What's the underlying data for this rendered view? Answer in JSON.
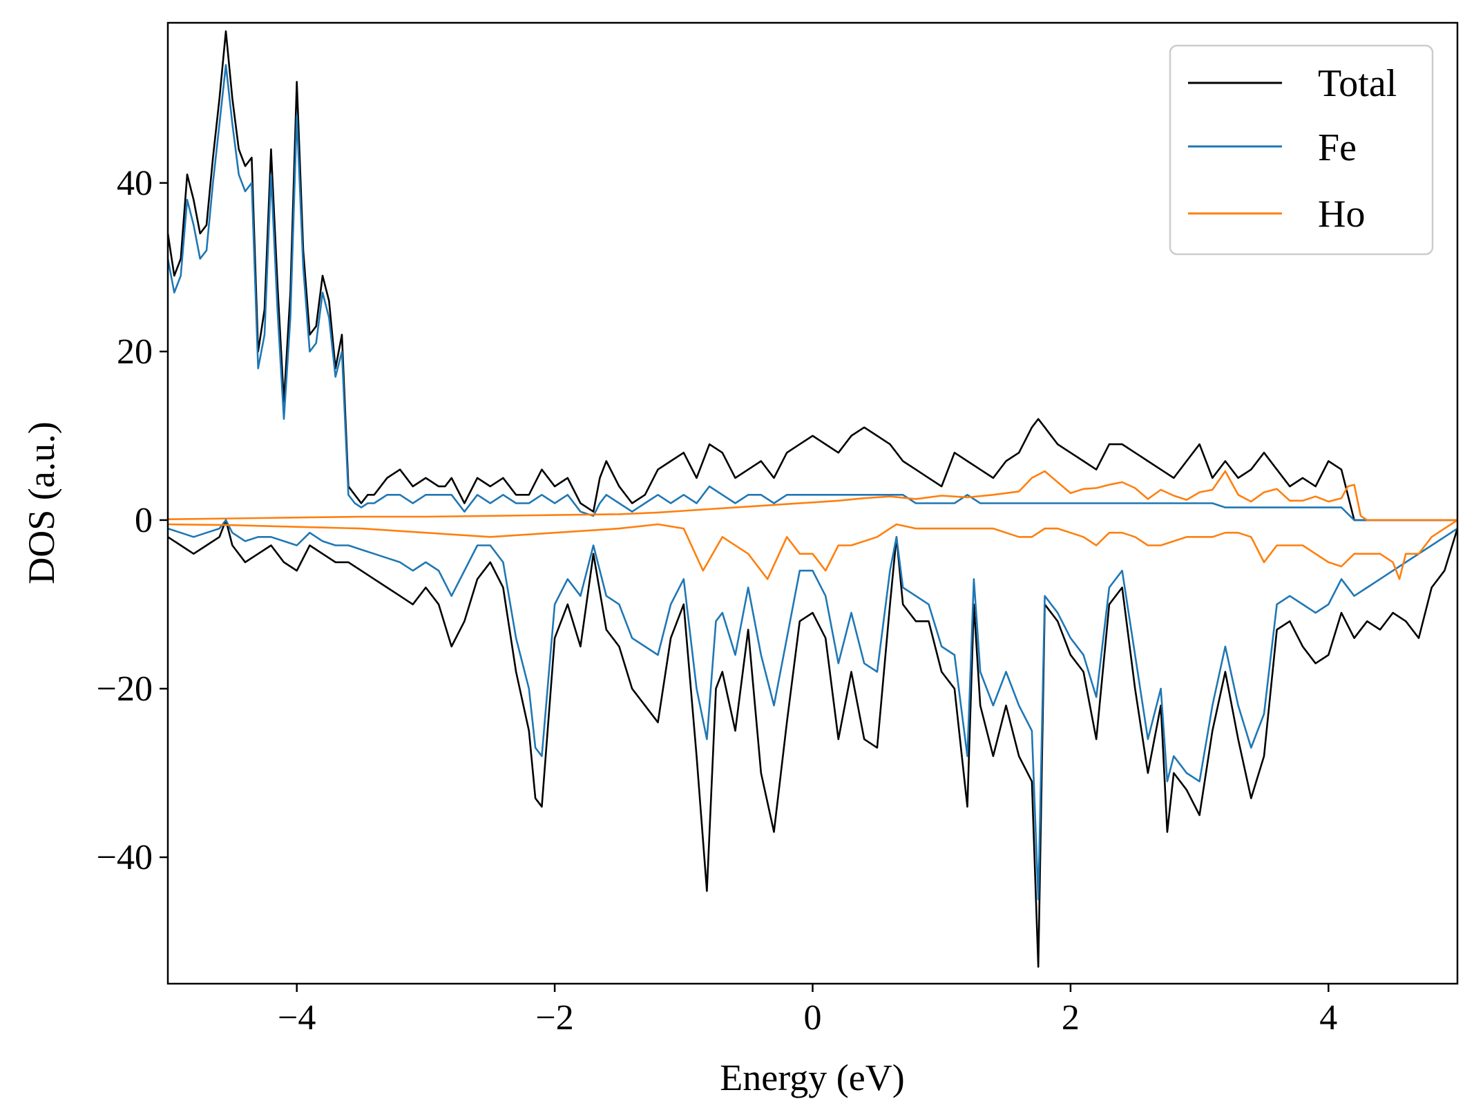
{
  "chart_data": {
    "type": "line",
    "title": "",
    "xlabel": "Energy (eV)",
    "ylabel": "DOS (a.u.)",
    "xlim": [
      -5,
      5
    ],
    "ylim": [
      -55,
      59
    ],
    "xticks": [
      -4,
      -2,
      0,
      2,
      4
    ],
    "yticks": [
      -40,
      -20,
      0,
      20,
      40
    ],
    "xtick_labels": [
      "−4",
      "−2",
      "0",
      "2",
      "4"
    ],
    "ytick_labels": [
      "−40",
      "−20",
      "0",
      "20",
      "40"
    ],
    "grid": false,
    "legend": {
      "position": "top-right",
      "entries": [
        "Total",
        "Fe",
        "Ho"
      ]
    },
    "series": [
      {
        "name": "Total",
        "spin": "up",
        "color": "#000000",
        "x": [
          -5.0,
          -4.95,
          -4.9,
          -4.85,
          -4.8,
          -4.75,
          -4.7,
          -4.65,
          -4.6,
          -4.55,
          -4.5,
          -4.45,
          -4.4,
          -4.35,
          -4.3,
          -4.25,
          -4.2,
          -4.15,
          -4.1,
          -4.05,
          -4.0,
          -3.95,
          -3.9,
          -3.85,
          -3.8,
          -3.75,
          -3.7,
          -3.65,
          -3.6,
          -3.55,
          -3.5,
          -3.45,
          -3.4,
          -3.35,
          -3.3,
          -3.2,
          -3.1,
          -3.0,
          -2.9,
          -2.85,
          -2.8,
          -2.7,
          -2.6,
          -2.5,
          -2.4,
          -2.3,
          -2.2,
          -2.1,
          -2.0,
          -1.9,
          -1.8,
          -1.7,
          -1.65,
          -1.6,
          -1.5,
          -1.4,
          -1.3,
          -1.2,
          -1.1,
          -1.0,
          -0.9,
          -0.8,
          -0.7,
          -0.6,
          -0.5,
          -0.4,
          -0.3,
          -0.2,
          -0.1,
          0.0,
          0.1,
          0.2,
          0.3,
          0.4,
          0.5,
          0.6,
          0.65,
          0.7,
          0.8,
          0.9,
          1.0,
          1.1,
          1.2,
          1.3,
          1.4,
          1.5,
          1.6,
          1.7,
          1.75,
          1.8,
          1.85,
          1.9,
          2.0,
          2.1,
          2.2,
          2.3,
          2.4,
          2.5,
          2.6,
          2.7,
          2.8,
          2.9,
          3.0,
          3.1,
          3.2,
          3.3,
          3.4,
          3.5,
          3.6,
          3.7,
          3.8,
          3.9,
          4.0,
          4.1,
          4.2,
          4.25,
          4.3,
          4.4,
          4.5,
          4.6,
          4.7,
          4.8,
          4.9,
          5.0
        ],
        "y": [
          34,
          29,
          31,
          41,
          38,
          34,
          35,
          43,
          50,
          58,
          50,
          44,
          42,
          43,
          20,
          25,
          44,
          28,
          14,
          27,
          52,
          32,
          22,
          23,
          29,
          26,
          18,
          22,
          4,
          3,
          2,
          3,
          3,
          4,
          5,
          6,
          4,
          5,
          4,
          4,
          5,
          2,
          5,
          4,
          5,
          3,
          3,
          6,
          4,
          5,
          2,
          1,
          5,
          7,
          4,
          2,
          3,
          6,
          7,
          8,
          5,
          9,
          8,
          5,
          6,
          7,
          5,
          8,
          9,
          10,
          9,
          8,
          10,
          11,
          10,
          9,
          8,
          7,
          6,
          5,
          4,
          8,
          7,
          6,
          5,
          7,
          8,
          11,
          12,
          11,
          10,
          9,
          8,
          7,
          6,
          9,
          9,
          8,
          7,
          6,
          5,
          7,
          9,
          5,
          7,
          5,
          6,
          8,
          6,
          4,
          5,
          4,
          7,
          6,
          0,
          0,
          0,
          0,
          0,
          0,
          0,
          0,
          0,
          0
        ]
      },
      {
        "name": "Fe",
        "spin": "up",
        "color": "#1f77b4",
        "x": [
          -5.0,
          -4.95,
          -4.9,
          -4.85,
          -4.8,
          -4.75,
          -4.7,
          -4.65,
          -4.6,
          -4.55,
          -4.5,
          -4.45,
          -4.4,
          -4.35,
          -4.3,
          -4.25,
          -4.2,
          -4.15,
          -4.1,
          -4.05,
          -4.0,
          -3.95,
          -3.9,
          -3.85,
          -3.8,
          -3.75,
          -3.7,
          -3.65,
          -3.6,
          -3.55,
          -3.5,
          -3.45,
          -3.4,
          -3.35,
          -3.3,
          -3.2,
          -3.1,
          -3.0,
          -2.9,
          -2.85,
          -2.8,
          -2.7,
          -2.6,
          -2.5,
          -2.4,
          -2.3,
          -2.2,
          -2.1,
          -2.0,
          -1.9,
          -1.8,
          -1.7,
          -1.65,
          -1.6,
          -1.5,
          -1.4,
          -1.3,
          -1.2,
          -1.1,
          -1.0,
          -0.9,
          -0.8,
          -0.7,
          -0.6,
          -0.5,
          -0.4,
          -0.3,
          -0.2,
          -0.1,
          0.0,
          0.1,
          0.2,
          0.3,
          0.4,
          0.5,
          0.6,
          0.65,
          0.7,
          0.8,
          0.9,
          1.0,
          1.1,
          1.2,
          1.3,
          1.4,
          1.5,
          1.6,
          1.7,
          1.75,
          1.8,
          1.85,
          1.9,
          2.0,
          2.1,
          2.2,
          2.3,
          2.4,
          2.5,
          2.6,
          2.7,
          2.8,
          2.9,
          3.0,
          3.1,
          3.2,
          3.3,
          3.4,
          3.5,
          3.6,
          3.7,
          3.8,
          3.9,
          4.0,
          4.1,
          4.2,
          4.25,
          4.3,
          4.4,
          4.5,
          4.6,
          4.7,
          4.8,
          4.9,
          5.0
        ],
        "y": [
          31,
          27,
          29,
          38,
          35,
          31,
          32,
          40,
          47,
          54,
          47,
          41,
          39,
          40,
          18,
          22,
          41,
          25,
          12,
          24,
          48,
          30,
          20,
          21,
          27,
          24,
          17,
          20,
          3,
          2,
          1.5,
          2,
          2,
          2.5,
          3,
          3,
          2,
          3,
          3,
          3,
          3,
          1,
          3,
          2,
          3,
          2,
          2,
          3,
          2,
          3,
          1,
          0.5,
          2,
          3,
          2,
          1,
          2,
          3,
          2,
          3,
          2,
          4,
          3,
          2,
          3,
          3,
          2,
          3,
          3,
          3,
          3,
          3,
          3,
          3,
          3,
          3,
          3,
          3,
          2,
          2,
          2,
          2,
          3,
          2,
          2,
          2,
          2,
          2,
          2,
          2,
          2,
          2,
          2,
          2,
          2,
          2,
          2,
          2,
          2,
          2,
          2,
          2,
          2,
          2,
          1.5,
          1.5,
          1.5,
          1.5,
          1.5,
          1.5,
          1.5,
          1.5,
          1.5,
          1.5,
          0,
          0,
          0,
          0,
          0,
          0,
          0,
          0,
          0,
          0
        ]
      },
      {
        "name": "Ho",
        "spin": "up",
        "color": "#ff7f0e",
        "x": [
          -5.0,
          -4.5,
          -4.0,
          -3.5,
          -3.0,
          -2.5,
          -2.0,
          -1.5,
          -1.2,
          -1.0,
          -0.8,
          -0.6,
          -0.4,
          -0.2,
          0.0,
          0.2,
          0.4,
          0.6,
          0.8,
          1.0,
          1.2,
          1.4,
          1.6,
          1.7,
          1.8,
          1.9,
          2.0,
          2.1,
          2.2,
          2.3,
          2.4,
          2.5,
          2.6,
          2.7,
          2.8,
          2.9,
          3.0,
          3.1,
          3.2,
          3.3,
          3.4,
          3.5,
          3.6,
          3.7,
          3.8,
          3.9,
          4.0,
          4.1,
          4.15,
          4.2,
          4.25,
          4.3,
          4.5,
          5.0
        ],
        "y": [
          0.1,
          0.2,
          0.3,
          0.4,
          0.4,
          0.5,
          0.6,
          0.7,
          0.9,
          1.1,
          1.3,
          1.5,
          1.7,
          1.9,
          2.1,
          2.3,
          2.6,
          2.8,
          2.5,
          2.9,
          2.7,
          3.0,
          3.4,
          5.0,
          5.8,
          4.5,
          3.2,
          3.7,
          3.8,
          4.2,
          4.5,
          3.8,
          2.5,
          3.6,
          2.9,
          2.4,
          3.3,
          3.6,
          5.8,
          3.0,
          2.2,
          3.3,
          3.7,
          2.3,
          2.3,
          2.8,
          2.2,
          2.6,
          4.0,
          4.2,
          0.5,
          0,
          0,
          0
        ]
      },
      {
        "name": "Total",
        "spin": "down",
        "color": "#000000",
        "x": [
          -5.0,
          -4.9,
          -4.8,
          -4.7,
          -4.6,
          -4.55,
          -4.5,
          -4.4,
          -4.3,
          -4.2,
          -4.1,
          -4.0,
          -3.9,
          -3.8,
          -3.7,
          -3.6,
          -3.5,
          -3.4,
          -3.3,
          -3.2,
          -3.1,
          -3.0,
          -2.9,
          -2.8,
          -2.7,
          -2.6,
          -2.5,
          -2.4,
          -2.3,
          -2.2,
          -2.15,
          -2.1,
          -2.0,
          -1.9,
          -1.8,
          -1.7,
          -1.6,
          -1.5,
          -1.4,
          -1.3,
          -1.2,
          -1.1,
          -1.0,
          -0.9,
          -0.82,
          -0.75,
          -0.7,
          -0.6,
          -0.5,
          -0.4,
          -0.3,
          -0.2,
          -0.1,
          0.0,
          0.1,
          0.2,
          0.3,
          0.4,
          0.5,
          0.6,
          0.65,
          0.7,
          0.8,
          0.9,
          1.0,
          1.1,
          1.2,
          1.25,
          1.3,
          1.4,
          1.5,
          1.6,
          1.7,
          1.75,
          1.8,
          1.9,
          2.0,
          2.1,
          2.2,
          2.3,
          2.4,
          2.5,
          2.6,
          2.7,
          2.75,
          2.8,
          2.9,
          3.0,
          3.1,
          3.2,
          3.3,
          3.4,
          3.5,
          3.6,
          3.7,
          3.8,
          3.9,
          4.0,
          4.1,
          4.2,
          4.3,
          4.4,
          4.5,
          4.6,
          4.7,
          4.8,
          4.9,
          5.0
        ],
        "y": [
          -2,
          -3,
          -4,
          -3,
          -2,
          0,
          -3,
          -5,
          -4,
          -3,
          -5,
          -6,
          -3,
          -4,
          -5,
          -5,
          -6,
          -7,
          -8,
          -9,
          -10,
          -8,
          -10,
          -15,
          -12,
          -7,
          -5,
          -8,
          -18,
          -25,
          -33,
          -34,
          -14,
          -10,
          -15,
          -4,
          -13,
          -15,
          -20,
          -22,
          -24,
          -14,
          -10,
          -28,
          -44,
          -20,
          -18,
          -25,
          -13,
          -30,
          -37,
          -24,
          -12,
          -11,
          -14,
          -26,
          -18,
          -26,
          -27,
          -10,
          -2,
          -10,
          -12,
          -12,
          -18,
          -20,
          -34,
          -10,
          -22,
          -28,
          -22,
          -28,
          -31,
          -53,
          -10,
          -12,
          -16,
          -18,
          -26,
          -10,
          -8,
          -20,
          -30,
          -22,
          -37,
          -30,
          -32,
          -35,
          -25,
          -18,
          -26,
          -33,
          -28,
          -13,
          -12,
          -15,
          -17,
          -16,
          -11,
          -14,
          -12,
          -13,
          -11,
          -12,
          -14,
          -8,
          -6,
          -1
        ]
      },
      {
        "name": "Fe",
        "spin": "down",
        "color": "#1f77b4",
        "x": [
          -5.0,
          -4.9,
          -4.8,
          -4.7,
          -4.6,
          -4.55,
          -4.5,
          -4.4,
          -4.3,
          -4.2,
          -4.1,
          -4.0,
          -3.9,
          -3.8,
          -3.7,
          -3.6,
          -3.5,
          -3.4,
          -3.3,
          -3.2,
          -3.1,
          -3.0,
          -2.9,
          -2.8,
          -2.7,
          -2.6,
          -2.5,
          -2.4,
          -2.3,
          -2.2,
          -2.15,
          -2.1,
          -2.0,
          -1.9,
          -1.8,
          -1.7,
          -1.6,
          -1.5,
          -1.4,
          -1.3,
          -1.2,
          -1.1,
          -1.0,
          -0.9,
          -0.82,
          -0.75,
          -0.7,
          -0.6,
          -0.5,
          -0.4,
          -0.3,
          -0.2,
          -0.1,
          0.0,
          0.1,
          0.2,
          0.3,
          0.4,
          0.5,
          0.6,
          0.65,
          0.7,
          0.8,
          0.9,
          1.0,
          1.1,
          1.2,
          1.25,
          1.3,
          1.4,
          1.5,
          1.6,
          1.7,
          1.75,
          1.8,
          1.9,
          2.0,
          2.1,
          2.2,
          2.3,
          2.4,
          2.5,
          2.6,
          2.7,
          2.75,
          2.8,
          2.9,
          3.0,
          3.1,
          3.2,
          3.3,
          3.4,
          3.5,
          3.6,
          3.7,
          3.8,
          3.9,
          4.0,
          4.1,
          4.2,
          4.3,
          4.4,
          4.5,
          4.6,
          4.7,
          4.8,
          4.9,
          5.0
        ],
        "y": [
          -1,
          -1.5,
          -2,
          -1.5,
          -1,
          0,
          -1.5,
          -2.5,
          -2,
          -2,
          -2.5,
          -3,
          -1.5,
          -2.5,
          -3,
          -3,
          -3.5,
          -4,
          -4.5,
          -5,
          -6,
          -5,
          -6,
          -9,
          -6,
          -3,
          -3,
          -5,
          -14,
          -20,
          -27,
          -28,
          -10,
          -7,
          -9,
          -3,
          -9,
          -10,
          -14,
          -15,
          -16,
          -10,
          -7,
          -20,
          -26,
          -12,
          -11,
          -16,
          -8,
          -16,
          -22,
          -14,
          -6,
          -6,
          -9,
          -17,
          -11,
          -17,
          -18,
          -6,
          -2,
          -8,
          -9,
          -10,
          -15,
          -16,
          -28,
          -7,
          -18,
          -22,
          -18,
          -22,
          -25,
          -45,
          -9,
          -11,
          -14,
          -16,
          -21,
          -8,
          -6,
          -16,
          -26,
          -20,
          -31,
          -28,
          -30,
          -31,
          -22,
          -15,
          -22,
          -27,
          -23,
          -10,
          -9,
          -10,
          -11,
          -10,
          -7,
          -9,
          -8,
          -7,
          -6,
          -5,
          -4,
          -3,
          -2,
          -1
        ]
      },
      {
        "name": "Ho",
        "spin": "down",
        "color": "#ff7f0e",
        "x": [
          -5.0,
          -4.5,
          -4.0,
          -3.5,
          -3.0,
          -2.5,
          -2.0,
          -1.5,
          -1.2,
          -1.0,
          -0.85,
          -0.7,
          -0.5,
          -0.35,
          -0.2,
          -0.1,
          0.0,
          0.1,
          0.2,
          0.3,
          0.5,
          0.6,
          0.65,
          0.8,
          1.0,
          1.2,
          1.4,
          1.6,
          1.7,
          1.8,
          1.9,
          2.0,
          2.1,
          2.2,
          2.3,
          2.4,
          2.5,
          2.6,
          2.7,
          2.8,
          2.9,
          3.0,
          3.1,
          3.2,
          3.3,
          3.4,
          3.5,
          3.6,
          3.7,
          3.8,
          3.9,
          4.0,
          4.1,
          4.2,
          4.3,
          4.4,
          4.5,
          4.55,
          4.6,
          4.7,
          4.8,
          4.9,
          5.0
        ],
        "y": [
          -0.5,
          -0.6,
          -0.8,
          -1,
          -1.5,
          -2,
          -1.5,
          -1,
          -0.5,
          -1,
          -6,
          -2,
          -4,
          -7,
          -2,
          -4,
          -4,
          -6,
          -3,
          -3,
          -2,
          -1,
          -0.5,
          -1,
          -1,
          -1,
          -1,
          -2,
          -2,
          -1,
          -1,
          -1.5,
          -2,
          -3,
          -1.5,
          -1.5,
          -2,
          -3,
          -3,
          -2.5,
          -2,
          -2,
          -2,
          -1.5,
          -1.5,
          -2,
          -5,
          -3,
          -3,
          -3,
          -4,
          -5,
          -5.5,
          -4,
          -4,
          -4,
          -5,
          -7,
          -4,
          -4,
          -2,
          -1,
          0
        ]
      }
    ]
  }
}
